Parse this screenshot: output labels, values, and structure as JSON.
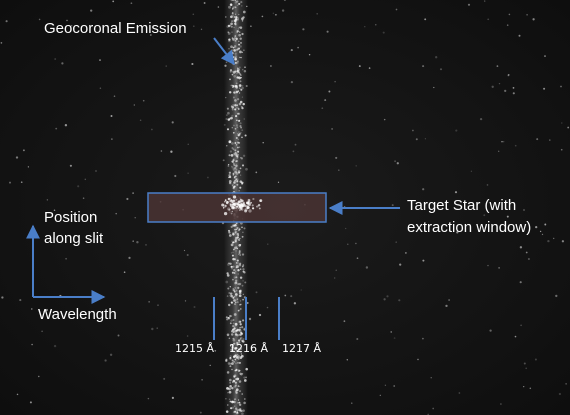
{
  "labels": {
    "geocoronal": "Geocoronal Emission",
    "target_line1": "Target Star (with",
    "target_line2": "extraction window)",
    "position_line1": "Position",
    "position_line2": "along slit",
    "wavelength": "Wavelength"
  },
  "ticks": [
    "1215 Å",
    "1216 Å",
    "1217 Å"
  ],
  "colors": {
    "arrow": "#4a7ec8",
    "window_border": "#4a7ec8",
    "window_fill": "#4a3434",
    "text": "#ffffff",
    "background": "#141414"
  }
}
